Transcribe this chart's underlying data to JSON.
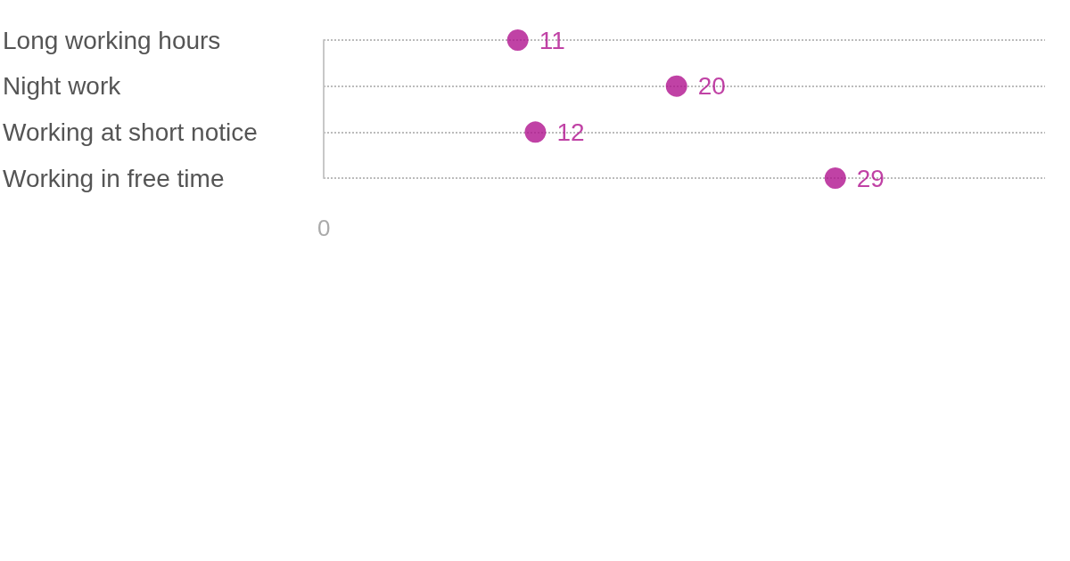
{
  "chart_data": {
    "type": "scatter",
    "orientation": "horizontal",
    "categories": [
      "Long working hours",
      "Night work",
      "Working at short notice",
      "Working in free time"
    ],
    "values": [
      11,
      20,
      12,
      29
    ],
    "color": "#b0138f",
    "annotations": [
      "0"
    ],
    "data_labels": true,
    "grid": "y",
    "marker": "circle"
  }
}
